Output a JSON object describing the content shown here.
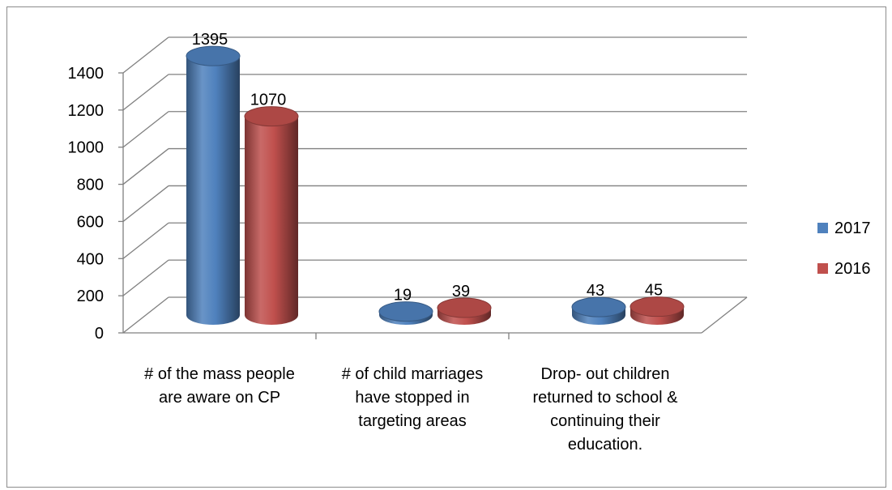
{
  "chart_data": {
    "type": "bar",
    "categories": [
      [
        "# of the mass people",
        "are aware on CP"
      ],
      [
        "# of child marriages",
        "have stopped in",
        "targeting areas"
      ],
      [
        "Drop- out children",
        "returned to school &",
        "continuing their",
        "education."
      ]
    ],
    "series": [
      {
        "name": "2017",
        "values": [
          1395,
          19,
          43
        ],
        "color": "#4f81bd"
      },
      {
        "name": "2016",
        "values": [
          1070,
          39,
          45
        ],
        "color": "#c0504d"
      }
    ],
    "ylim": [
      0,
      1400
    ],
    "yticks": [
      0,
      200,
      400,
      600,
      800,
      1000,
      1200,
      1400
    ],
    "grid": true,
    "legend": "right",
    "style": "3d-cylinder"
  }
}
